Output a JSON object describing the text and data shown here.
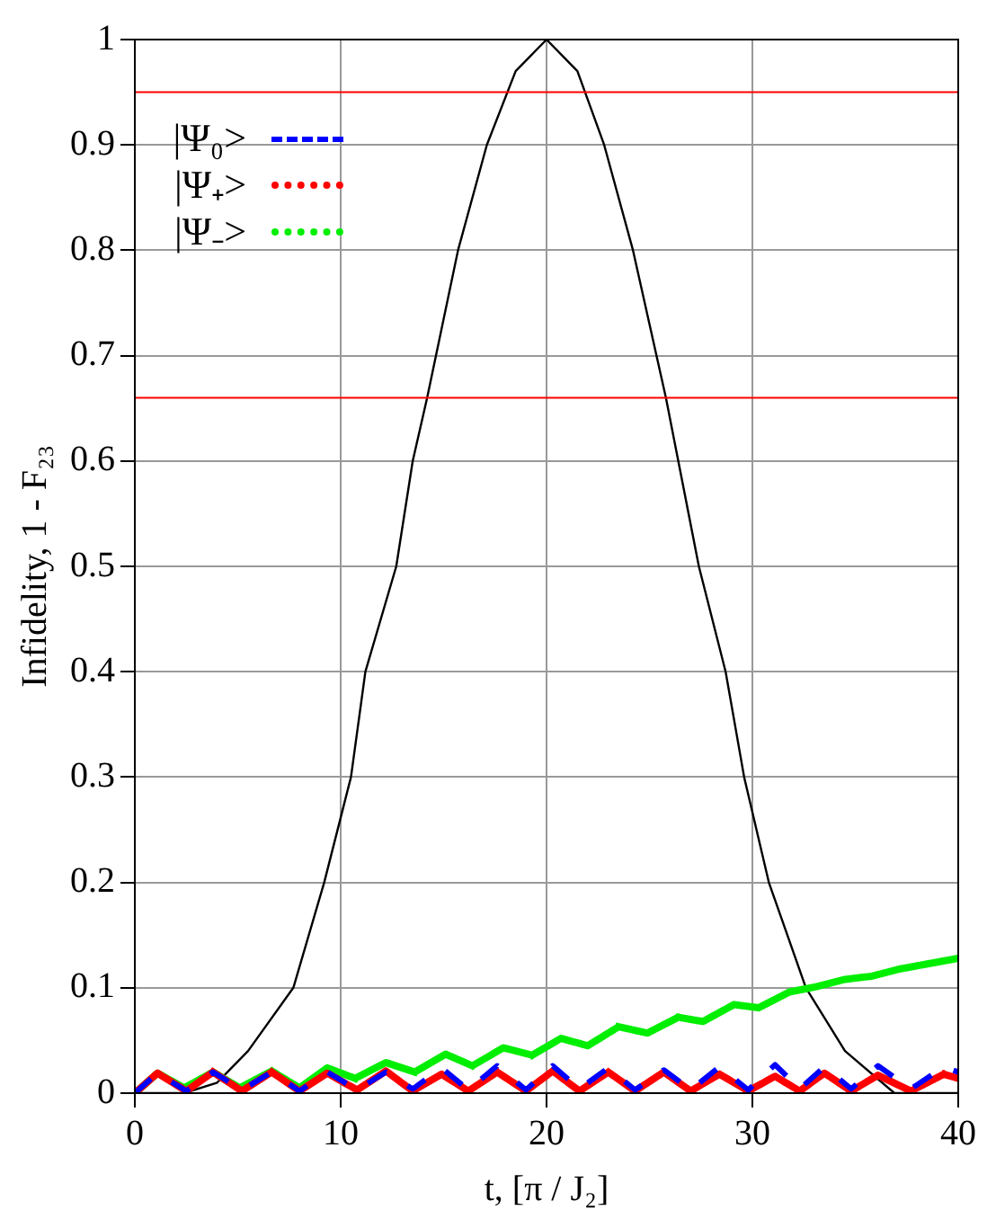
{
  "chart_data": {
    "type": "line",
    "xlabel": "t, [π / J₂]",
    "ylabel": "Infidelity, 1 - F₂₃",
    "xlim": [
      0,
      40
    ],
    "xticks": [
      0,
      10,
      20,
      30,
      40
    ],
    "ylim": [
      0,
      1
    ],
    "yticks": [
      0,
      0.1,
      0.2,
      0.3,
      0.4,
      0.5,
      0.6,
      0.7,
      0.8,
      0.9,
      1
    ],
    "grid": true,
    "legend": "top left",
    "marker": "none",
    "ref_lines": [
      {
        "axis": "y",
        "value": 0.95,
        "color": "#ff0000"
      },
      {
        "axis": "y",
        "value": 0.66,
        "color": "#ff0000"
      }
    ],
    "series": [
      {
        "name": "|Ψ₀>",
        "color": "#0000ff",
        "line_style": "dashed",
        "x": [
          0,
          1.1,
          2.5,
          3.8,
          5.2,
          6.65,
          8,
          9.35,
          10.8,
          12.2,
          13.5,
          14.9,
          16.2,
          17.6,
          19,
          20.3,
          21.6,
          23,
          24.3,
          25.7,
          27,
          28.4,
          29.8,
          31.1,
          32.3,
          33.5,
          34.8,
          36.1,
          37.7,
          39.3,
          40
        ],
        "values": [
          0,
          0.019,
          0.002,
          0.02,
          0.003,
          0.02,
          0.002,
          0.02,
          0.003,
          0.02,
          0.004,
          0.024,
          0.003,
          0.026,
          0.003,
          0.026,
          0.004,
          0.024,
          0.003,
          0.022,
          0.003,
          0.025,
          0.003,
          0.027,
          0.004,
          0.025,
          0.004,
          0.026,
          0.004,
          0.025,
          0.02
        ]
      },
      {
        "name": "|Ψ₊>",
        "color": "#ff0000",
        "line_style": "dotted",
        "x": [
          0,
          1.1,
          2.5,
          3.8,
          5.2,
          6.65,
          8,
          9.35,
          10.8,
          12.2,
          13.5,
          14.9,
          16.2,
          17.6,
          19,
          20.3,
          21.6,
          23,
          24.3,
          25.7,
          27,
          28.4,
          29.8,
          31.1,
          32.3,
          33.5,
          34.8,
          36.1,
          37.7,
          39.3,
          40
        ],
        "values": [
          0,
          0.019,
          0.002,
          0.02,
          0.002,
          0.02,
          0.002,
          0.019,
          0.003,
          0.021,
          0.002,
          0.018,
          0.002,
          0.02,
          0.002,
          0.021,
          0.002,
          0.02,
          0.002,
          0.02,
          0.002,
          0.018,
          0.002,
          0.016,
          0.002,
          0.019,
          0.002,
          0.017,
          0.002,
          0.018,
          0.014
        ]
      },
      {
        "name": "|Ψ₋>",
        "color": "#00ee00",
        "line_style": "dotted",
        "x": [
          0,
          1.1,
          2.4,
          3.8,
          5.1,
          6.65,
          8,
          9.35,
          10.7,
          12.2,
          13.6,
          15.1,
          16.4,
          17.9,
          19.3,
          20.7,
          22,
          23.5,
          24.9,
          26.4,
          27.6,
          29.1,
          30.3,
          31.8,
          33.1,
          34.5,
          35.8,
          37.2,
          40
        ],
        "values": [
          0,
          0.019,
          0.005,
          0.02,
          0.005,
          0.021,
          0.005,
          0.024,
          0.014,
          0.029,
          0.02,
          0.037,
          0.026,
          0.043,
          0.036,
          0.052,
          0.045,
          0.063,
          0.057,
          0.072,
          0.068,
          0.084,
          0.081,
          0.096,
          0.101,
          0.108,
          0.111,
          0.118,
          0.128
        ]
      },
      {
        "color": "#000000",
        "line_style": "solid",
        "x": [
          0,
          2.4,
          4,
          5.5,
          7.7,
          9.2,
          10.5,
          11.2,
          12.7,
          13.5,
          14.2,
          15.7,
          17.1,
          18.5,
          20,
          21.5,
          22.8,
          24.2,
          25.8,
          26.4,
          27.4,
          28.7,
          29.6,
          30.8,
          32.6,
          34.5,
          36.9,
          40
        ],
        "values": [
          0,
          0,
          0.01,
          0.04,
          0.1,
          0.2,
          0.3,
          0.4,
          0.5,
          0.6,
          0.66,
          0.8,
          0.9,
          0.97,
          1,
          0.97,
          0.9,
          0.8,
          0.66,
          0.6,
          0.5,
          0.4,
          0.3,
          0.2,
          0.1,
          0.04,
          0,
          0
        ]
      }
    ]
  }
}
